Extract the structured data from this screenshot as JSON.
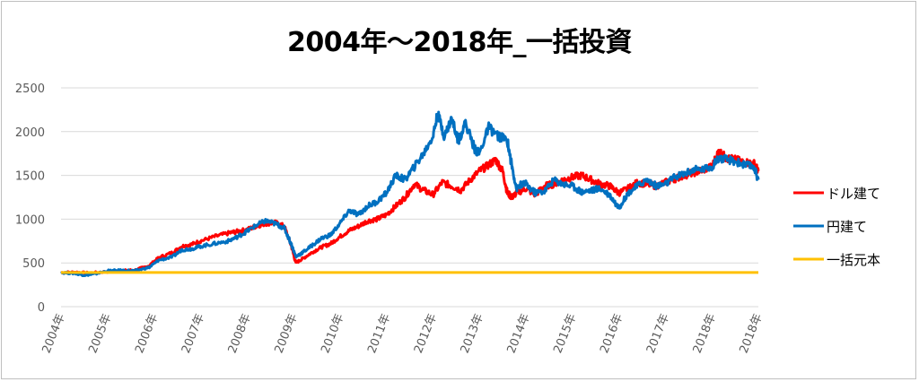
{
  "chart_data": {
    "type": "line",
    "title": "2004年～2018年_一括投資",
    "xlabel": "",
    "ylabel": "",
    "x": [
      "2004年",
      "2005年",
      "2006年",
      "2007年",
      "2008年",
      "2009年",
      "2010年",
      "2011年",
      "2012年",
      "2013年",
      "2014年",
      "2015年",
      "2016年",
      "2017年",
      "2018年",
      "2018年"
    ],
    "ylim": [
      0,
      2500
    ],
    "yticks": [
      0,
      500,
      1000,
      1500,
      2000,
      2500
    ],
    "grid": true,
    "legend_position": "right",
    "series": [
      {
        "name": "ドル建て",
        "color": "#ff0000",
        "points": [
          [
            0,
            390
          ],
          [
            0.3,
            395
          ],
          [
            0.6,
            385
          ],
          [
            1.0,
            400
          ],
          [
            1.3,
            410
          ],
          [
            1.6,
            420
          ],
          [
            1.9,
            470
          ],
          [
            2.1,
            560
          ],
          [
            2.4,
            620
          ],
          [
            2.6,
            690
          ],
          [
            2.8,
            710
          ],
          [
            3.0,
            750
          ],
          [
            3.3,
            800
          ],
          [
            3.6,
            840
          ],
          [
            3.8,
            860
          ],
          [
            4.0,
            880
          ],
          [
            4.2,
            920
          ],
          [
            4.4,
            950
          ],
          [
            4.6,
            960
          ],
          [
            4.8,
            920
          ],
          [
            4.95,
            700
          ],
          [
            5.05,
            500
          ],
          [
            5.2,
            550
          ],
          [
            5.4,
            620
          ],
          [
            5.6,
            680
          ],
          [
            5.8,
            720
          ],
          [
            6.0,
            800
          ],
          [
            6.2,
            870
          ],
          [
            6.4,
            920
          ],
          [
            6.6,
            980
          ],
          [
            6.8,
            1000
          ],
          [
            7.0,
            1050
          ],
          [
            7.2,
            1150
          ],
          [
            7.4,
            1250
          ],
          [
            7.6,
            1400
          ],
          [
            7.8,
            1330
          ],
          [
            8.0,
            1280
          ],
          [
            8.2,
            1420
          ],
          [
            8.4,
            1380
          ],
          [
            8.6,
            1330
          ],
          [
            8.8,
            1450
          ],
          [
            9.0,
            1550
          ],
          [
            9.2,
            1620
          ],
          [
            9.35,
            1680
          ],
          [
            9.5,
            1550
          ],
          [
            9.6,
            1300
          ],
          [
            9.7,
            1250
          ],
          [
            9.8,
            1300
          ],
          [
            10.0,
            1350
          ],
          [
            10.2,
            1280
          ],
          [
            10.4,
            1380
          ],
          [
            10.6,
            1400
          ],
          [
            10.8,
            1450
          ],
          [
            11.0,
            1480
          ],
          [
            11.2,
            1500
          ],
          [
            11.4,
            1450
          ],
          [
            11.6,
            1400
          ],
          [
            11.8,
            1380
          ],
          [
            12.0,
            1300
          ],
          [
            12.2,
            1350
          ],
          [
            12.4,
            1420
          ],
          [
            12.6,
            1400
          ],
          [
            12.8,
            1380
          ],
          [
            13.0,
            1420
          ],
          [
            13.2,
            1460
          ],
          [
            13.4,
            1500
          ],
          [
            13.6,
            1530
          ],
          [
            13.8,
            1560
          ],
          [
            14.0,
            1600
          ],
          [
            14.15,
            1780
          ],
          [
            14.3,
            1700
          ],
          [
            14.5,
            1680
          ],
          [
            14.7,
            1650
          ],
          [
            14.9,
            1640
          ],
          [
            15.0,
            1550
          ]
        ]
      },
      {
        "name": "円建て",
        "color": "#0070c0",
        "points": [
          [
            0,
            390
          ],
          [
            0.3,
            380
          ],
          [
            0.5,
            360
          ],
          [
            0.7,
            370
          ],
          [
            1.0,
            410
          ],
          [
            1.3,
            415
          ],
          [
            1.6,
            410
          ],
          [
            1.9,
            450
          ],
          [
            2.1,
            530
          ],
          [
            2.4,
            570
          ],
          [
            2.6,
            650
          ],
          [
            2.8,
            660
          ],
          [
            3.0,
            690
          ],
          [
            3.3,
            720
          ],
          [
            3.6,
            750
          ],
          [
            3.8,
            800
          ],
          [
            4.0,
            860
          ],
          [
            4.2,
            930
          ],
          [
            4.4,
            980
          ],
          [
            4.6,
            950
          ],
          [
            4.8,
            900
          ],
          [
            4.95,
            720
          ],
          [
            5.05,
            570
          ],
          [
            5.2,
            620
          ],
          [
            5.4,
            700
          ],
          [
            5.6,
            780
          ],
          [
            5.8,
            820
          ],
          [
            6.0,
            950
          ],
          [
            6.2,
            1100
          ],
          [
            6.4,
            1050
          ],
          [
            6.6,
            1150
          ],
          [
            6.8,
            1200
          ],
          [
            7.0,
            1300
          ],
          [
            7.2,
            1500
          ],
          [
            7.4,
            1450
          ],
          [
            7.6,
            1600
          ],
          [
            7.8,
            1750
          ],
          [
            8.0,
            1950
          ],
          [
            8.1,
            2200
          ],
          [
            8.25,
            1950
          ],
          [
            8.4,
            2150
          ],
          [
            8.55,
            1900
          ],
          [
            8.7,
            2100
          ],
          [
            8.9,
            1800
          ],
          [
            9.0,
            1750
          ],
          [
            9.2,
            2050
          ],
          [
            9.4,
            1950
          ],
          [
            9.6,
            1900
          ],
          [
            9.7,
            1600
          ],
          [
            9.8,
            1350
          ],
          [
            9.9,
            1400
          ],
          [
            10.0,
            1400
          ],
          [
            10.2,
            1300
          ],
          [
            10.4,
            1320
          ],
          [
            10.6,
            1450
          ],
          [
            10.8,
            1400
          ],
          [
            11.0,
            1380
          ],
          [
            11.2,
            1310
          ],
          [
            11.4,
            1330
          ],
          [
            11.6,
            1350
          ],
          [
            11.8,
            1280
          ],
          [
            12.0,
            1130
          ],
          [
            12.2,
            1300
          ],
          [
            12.4,
            1380
          ],
          [
            12.6,
            1450
          ],
          [
            12.8,
            1380
          ],
          [
            13.0,
            1400
          ],
          [
            13.2,
            1480
          ],
          [
            13.4,
            1520
          ],
          [
            13.6,
            1560
          ],
          [
            13.8,
            1570
          ],
          [
            14.0,
            1600
          ],
          [
            14.15,
            1700
          ],
          [
            14.3,
            1680
          ],
          [
            14.5,
            1660
          ],
          [
            14.7,
            1620
          ],
          [
            14.9,
            1600
          ],
          [
            15.0,
            1450
          ]
        ]
      },
      {
        "name": "一括元本",
        "color": "#ffc000",
        "points": [
          [
            0,
            390
          ],
          [
            15.0,
            390
          ]
        ]
      }
    ]
  }
}
